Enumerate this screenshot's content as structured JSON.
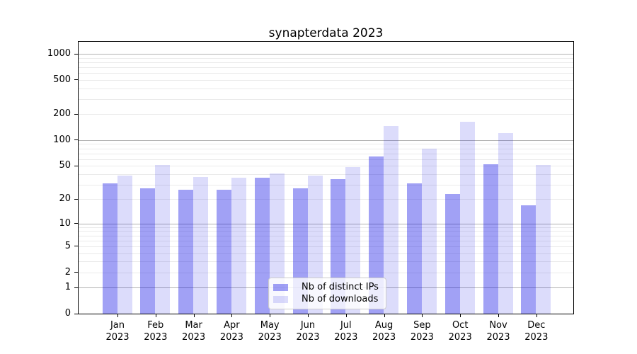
{
  "title": "synapterdata 2023",
  "colors": {
    "bar_dark": "rgba(10,10,230,0.385)",
    "bar_light": "rgba(10,10,230,0.14)",
    "grid_major": "#b2b2b2",
    "grid_minor": "#eaeaea",
    "axis": "#000000",
    "legend_border": "#cccccc",
    "legend_bg": "rgba(255,255,255,0.8)"
  },
  "chart_data": {
    "type": "bar",
    "title": "synapterdata 2023",
    "categories": [
      "Jan 2023",
      "Feb 2023",
      "Mar 2023",
      "Apr 2023",
      "May 2023",
      "Jun 2023",
      "Jul 2023",
      "Aug 2023",
      "Sep 2023",
      "Oct 2023",
      "Nov 2023",
      "Dec 2023"
    ],
    "x_months": [
      "Jan",
      "Feb",
      "Mar",
      "Apr",
      "May",
      "Jun",
      "Jul",
      "Aug",
      "Sep",
      "Oct",
      "Nov",
      "Dec"
    ],
    "x_year": "2023",
    "series": [
      {
        "name": "Nb of distinct IPs",
        "color_key": "bar_dark",
        "values": [
          31,
          27,
          26,
          26,
          36,
          27,
          35,
          65,
          31,
          23,
          52,
          17
        ]
      },
      {
        "name": "Nb of downloads",
        "color_key": "bar_light",
        "values": [
          38,
          51,
          37,
          36,
          41,
          38,
          48,
          145,
          80,
          165,
          120,
          51
        ]
      }
    ],
    "xlabel": "",
    "ylabel": "",
    "yscale": "log(1+y)",
    "y_ticks": [
      0,
      1,
      2,
      5,
      10,
      20,
      50,
      100,
      200,
      500,
      1000
    ],
    "y_major_gridlines": [
      1,
      10,
      100,
      1000
    ],
    "ylim": [
      0,
      1380
    ],
    "grid": "major and minor horizontal",
    "legend_position": "lower center"
  }
}
